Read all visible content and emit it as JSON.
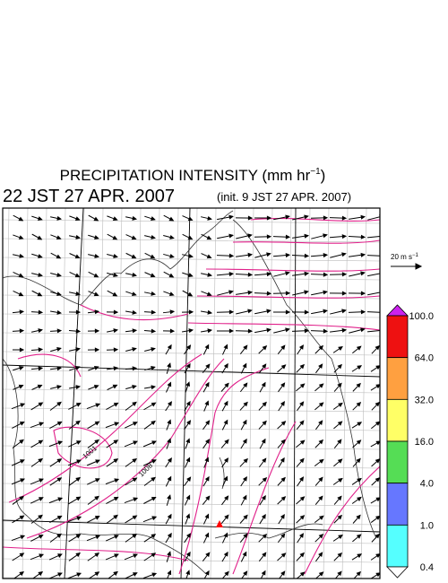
{
  "header": {
    "title": {
      "main": "PRECIPITATION INTENSITY (mm hr",
      "sup": "−1",
      "close": ")"
    },
    "valid_time": "22 JST 27 APR. 2007",
    "init_time": "(init. 9 JST 27 APR. 2007)"
  },
  "reference_vector": {
    "main": "20 m s",
    "sup": "−1"
  },
  "colorbar": {
    "labels": [
      "100.0",
      "64.0",
      "32.0",
      "16.0",
      "4.0",
      "1.0",
      "0.4"
    ],
    "colors": [
      "#cc22ee",
      "#ee1111",
      "#ffa040",
      "#ffff66",
      "#55dd55",
      "#6677ff",
      "#55ffff",
      "#ffffff"
    ]
  },
  "contour_labels": [
    "1001",
    "1008"
  ]
}
